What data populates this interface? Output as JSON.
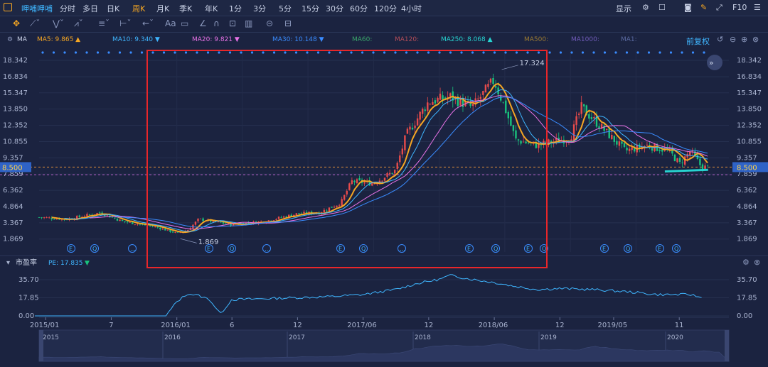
{
  "toolbar": {
    "brand": "呷哺呷哺",
    "periods": [
      "分时",
      "多日",
      "日K",
      "周K",
      "月K",
      "季K",
      "年K",
      "1分",
      "3分",
      "5分",
      "15分",
      "30分",
      "60分",
      "120分",
      "4小时"
    ],
    "active_period": "周K",
    "display_label": "显示",
    "f10_label": "F10"
  },
  "indicator_bar": {
    "label": "MA",
    "items": [
      {
        "text": "MA5: 9.865",
        "arrow": "▲",
        "color": "#f5a623"
      },
      {
        "text": "MA10: 9.340",
        "arrow": "▼",
        "color": "#3fb6ff"
      },
      {
        "text": "MA20: 9.821",
        "arrow": "▼",
        "color": "#e872e6"
      },
      {
        "text": "MA30: 10.148",
        "arrow": "▼",
        "color": "#3a8cff"
      },
      {
        "text": "MA60:",
        "arrow": "",
        "color": "#3aa56a"
      },
      {
        "text": "MA120:",
        "arrow": "",
        "color": "#b34d58"
      },
      {
        "text": "MA250: 8.068",
        "arrow": "▲",
        "color": "#27d3d0"
      },
      {
        "text": "MA500:",
        "arrow": "",
        "color": "#9a7a33"
      },
      {
        "text": "MA1000:",
        "arrow": "",
        "color": "#6f5bb8"
      },
      {
        "text": "MA1:",
        "arrow": "",
        "color": "#5a6aa0"
      }
    ],
    "adjust_label": "前复权"
  },
  "pe_panel": {
    "title": "市盈率",
    "legend": "PE: 17.835",
    "arrow": "▼"
  },
  "navigator_years": [
    "2015",
    "2016",
    "2017",
    "2018",
    "2019",
    "2020"
  ],
  "event_markers": [
    "E",
    "Q",
    "…",
    "E",
    "Q",
    "…",
    "E",
    "Q",
    "…",
    "E",
    "Q",
    "E",
    "Q",
    "E",
    "Q",
    "E",
    "Q"
  ],
  "chart_data": [
    {
      "type": "candlestick",
      "y_ticks": [
        18.342,
        16.834,
        15.347,
        13.85,
        12.352,
        10.855,
        9.357,
        7.859,
        6.362,
        4.864,
        3.367,
        1.869
      ],
      "ylim": [
        1.0,
        19.0
      ],
      "x_tick_labels": [
        "2015/01",
        "7",
        "2016/01",
        "6",
        "12",
        "2017/06",
        "12",
        "2018/06",
        "12",
        "2019/05",
        "11"
      ],
      "current_price": "8.500",
      "annotations": {
        "high": "17.324",
        "low": "1.869"
      },
      "price_series": [
        {
          "date": "2014-12",
          "close": 3.9
        },
        {
          "date": "2015-03",
          "close": 3.7
        },
        {
          "date": "2015-06",
          "close": 4.3
        },
        {
          "date": "2015-08",
          "close": 3.5
        },
        {
          "date": "2015-11",
          "close": 3.0
        },
        {
          "date": "2016-01",
          "close": 2.4
        },
        {
          "date": "2016-02",
          "close": 2.7
        },
        {
          "date": "2016-03",
          "close": 3.7
        },
        {
          "date": "2016-06",
          "close": 3.2
        },
        {
          "date": "2016-09",
          "close": 3.5
        },
        {
          "date": "2016-12",
          "close": 4.2
        },
        {
          "date": "2017-02",
          "close": 4.3
        },
        {
          "date": "2017-04",
          "close": 5.2
        },
        {
          "date": "2017-05",
          "close": 7.2
        },
        {
          "date": "2017-07",
          "close": 7.0
        },
        {
          "date": "2017-09",
          "close": 8.2
        },
        {
          "date": "2017-10",
          "close": 11.5
        },
        {
          "date": "2017-12",
          "close": 14.5
        },
        {
          "date": "2018-02",
          "close": 15.0
        },
        {
          "date": "2018-04",
          "close": 14.0
        },
        {
          "date": "2018-06",
          "close": 16.5
        },
        {
          "date": "2018-07",
          "close": 14.0
        },
        {
          "date": "2018-08",
          "close": 11.0
        },
        {
          "date": "2018-10",
          "close": 10.5
        },
        {
          "date": "2018-12",
          "close": 11.0
        },
        {
          "date": "2019-01",
          "close": 11.2
        },
        {
          "date": "2019-02",
          "close": 14.0
        },
        {
          "date": "2019-04",
          "close": 12.0
        },
        {
          "date": "2019-06",
          "close": 10.0
        },
        {
          "date": "2019-08",
          "close": 10.5
        },
        {
          "date": "2019-10",
          "close": 10.0
        },
        {
          "date": "2019-11",
          "close": 8.8
        },
        {
          "date": "2019-12",
          "close": 10.0
        },
        {
          "date": "2020-01",
          "close": 8.5
        }
      ]
    },
    {
      "type": "line",
      "y_ticks": [
        35.7,
        17.85,
        0.0
      ],
      "ylim": [
        0,
        42
      ],
      "pe_series": [
        {
          "date": "2014-12",
          "pe": 0
        },
        {
          "date": "2015-12",
          "pe": 0
        },
        {
          "date": "2016-01",
          "pe": 14
        },
        {
          "date": "2016-02",
          "pe": 22
        },
        {
          "date": "2016-03",
          "pe": 20
        },
        {
          "date": "2016-04",
          "pe": 16
        },
        {
          "date": "2016-05",
          "pe": 2
        },
        {
          "date": "2016-06",
          "pe": 16
        },
        {
          "date": "2016-09",
          "pe": 17
        },
        {
          "date": "2016-12",
          "pe": 18
        },
        {
          "date": "2017-03",
          "pe": 19
        },
        {
          "date": "2017-06",
          "pe": 21
        },
        {
          "date": "2017-09",
          "pe": 26
        },
        {
          "date": "2017-11",
          "pe": 32
        },
        {
          "date": "2018-01",
          "pe": 36
        },
        {
          "date": "2018-02",
          "pe": 40
        },
        {
          "date": "2018-04",
          "pe": 36
        },
        {
          "date": "2018-06",
          "pe": 33
        },
        {
          "date": "2018-08",
          "pe": 29
        },
        {
          "date": "2018-10",
          "pe": 26
        },
        {
          "date": "2018-12",
          "pe": 27
        },
        {
          "date": "2019-03",
          "pe": 26
        },
        {
          "date": "2019-06",
          "pe": 24
        },
        {
          "date": "2019-09",
          "pe": 21
        },
        {
          "date": "2019-12",
          "pe": 21
        },
        {
          "date": "2020-01",
          "pe": 18
        }
      ]
    }
  ]
}
